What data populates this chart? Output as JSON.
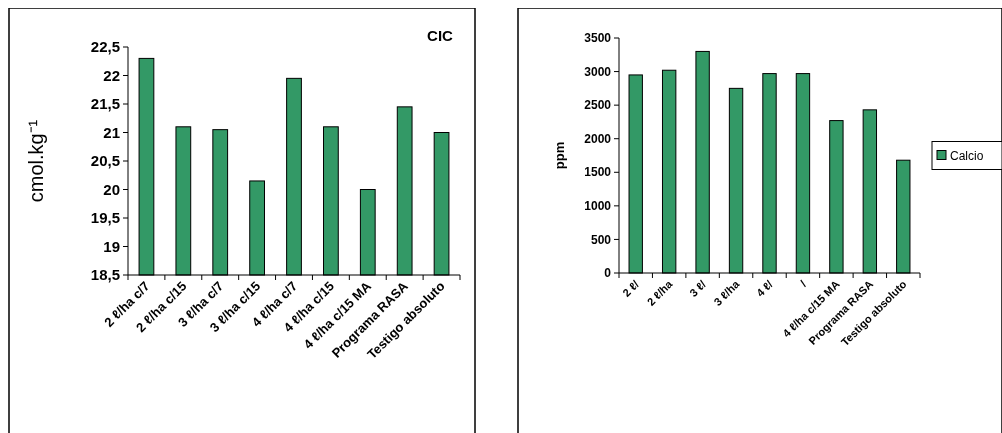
{
  "chart_data": [
    {
      "type": "bar",
      "title": "CIC",
      "ylabel": "cmol.kg⁻¹",
      "categories": [
        "2 ℓ/ha c/7",
        "2 ℓ/ha c/15",
        "3 ℓ/ha c/7",
        "3 ℓ/ha c/15",
        "4 ℓ/ha c/7",
        "4 ℓ/ha c/15",
        "4 ℓ/ha c/15 MA",
        "Programa RASA",
        "Testigo absoluto"
      ],
      "series": [
        {
          "color": "#339966",
          "values": [
            22.3,
            21.1,
            21.05,
            20.15,
            21.95,
            21.1,
            20.0,
            21.45,
            21.0
          ]
        }
      ],
      "ylim": [
        18.5,
        22.5
      ],
      "yticks": [
        {
          "value": 18.5,
          "label": "18,5"
        },
        19,
        {
          "value": 19.5,
          "label": "19,5"
        },
        20,
        {
          "value": 20.5,
          "label": "20,5"
        },
        21,
        {
          "value": 21.5,
          "label": "21,5"
        },
        22,
        {
          "value": 22.5,
          "label": "22,5"
        }
      ],
      "grid": false,
      "legend": false
    },
    {
      "type": "bar",
      "ylabel": "ppm",
      "categories": [
        "2 ℓ/",
        "2 ℓ/ha",
        "3 ℓ/",
        "3 ℓ/ha",
        "4 ℓ/",
        "/",
        "4 ℓ/ha c/15 MA",
        "Programa RASA",
        "Testigo absoluto"
      ],
      "series": [
        {
          "name": "Calcio",
          "color": "#339966",
          "values": [
            2950,
            3020,
            3300,
            2750,
            2970,
            2970,
            2270,
            2430,
            1680
          ]
        }
      ],
      "ylim": [
        0,
        3500
      ],
      "yticks": [
        0,
        500,
        1000,
        1500,
        2000,
        2500,
        3000,
        3500
      ],
      "grid": false,
      "legend": "right"
    }
  ]
}
